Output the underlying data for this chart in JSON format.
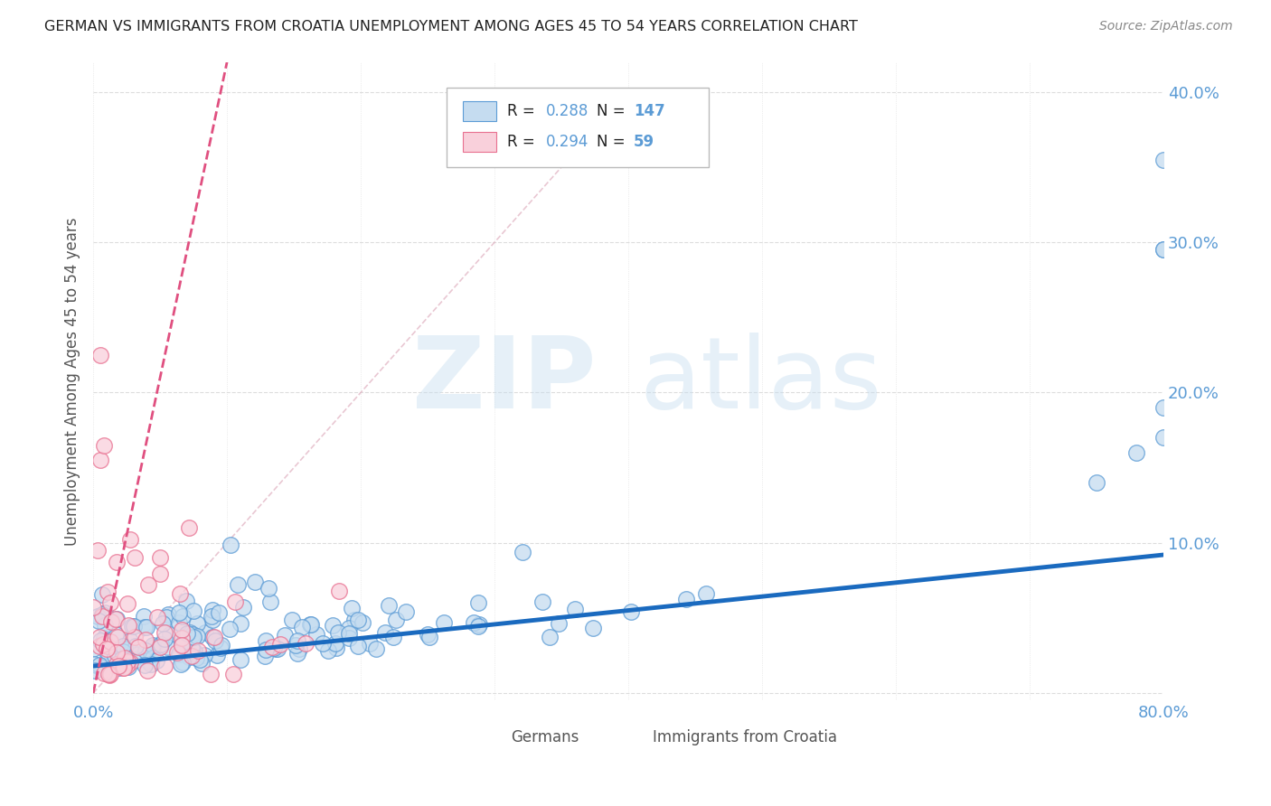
{
  "title": "GERMAN VS IMMIGRANTS FROM CROATIA UNEMPLOYMENT AMONG AGES 45 TO 54 YEARS CORRELATION CHART",
  "source": "Source: ZipAtlas.com",
  "ylabel": "Unemployment Among Ages 45 to 54 years",
  "xlim": [
    0,
    0.8
  ],
  "ylim": [
    -0.005,
    0.42
  ],
  "ytick_vals": [
    0.0,
    0.1,
    0.2,
    0.3,
    0.4
  ],
  "ytick_labels": [
    "",
    "10.0%",
    "20.0%",
    "30.0%",
    "40.0%"
  ],
  "xtick_vals": [
    0.0,
    0.1,
    0.2,
    0.3,
    0.4,
    0.5,
    0.6,
    0.7,
    0.8
  ],
  "xtick_labels": [
    "0.0%",
    "",
    "",
    "",
    "",
    "",
    "",
    "",
    "80.0%"
  ],
  "legend_german_R": "0.288",
  "legend_german_N": "147",
  "legend_croatia_R": "0.294",
  "legend_croatia_N": "59",
  "watermark_zip": "ZIP",
  "watermark_atlas": "atlas",
  "german_fill": "#c5dcf0",
  "german_edge": "#5b9bd5",
  "croatia_fill": "#f9d0db",
  "croatia_edge": "#e87090",
  "trendline_german_color": "#1a6abf",
  "trendline_croatia_color": "#e05080",
  "diag_line_color": "#e0b0c0",
  "background_color": "#ffffff",
  "grid_color": "#dddddd",
  "title_color": "#222222",
  "ylabel_color": "#555555",
  "tick_color": "#5b9bd5",
  "legend_label_color": "#222222",
  "legend_val_color": "#5b9bd5",
  "source_color": "#888888",
  "trendline_g_x0": 0.0,
  "trendline_g_y0": 0.018,
  "trendline_g_x1": 0.8,
  "trendline_g_y1": 0.092,
  "trendline_c_x0": 0.0,
  "trendline_c_y0": 0.0,
  "trendline_c_x1": 0.1,
  "trendline_c_y1": 0.42
}
